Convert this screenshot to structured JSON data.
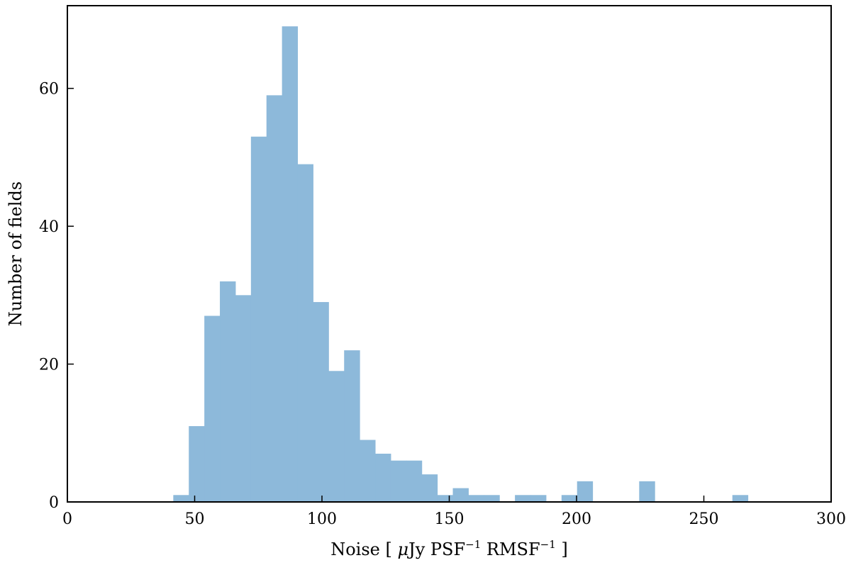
{
  "chart_data": {
    "type": "bar",
    "subtype": "histogram",
    "xlabel": "Noise [ μJy PSF⁻¹ RMSF⁻¹ ]",
    "xlabel_parts": {
      "pre": "Noise [ ",
      "mu": "μ",
      "jy_psf": "Jy PSF",
      "exp1": "−1",
      "rmsf": " RMSF",
      "exp2": "−1",
      "post": " ]"
    },
    "ylabel": "Number of fields",
    "xlim": [
      0,
      300
    ],
    "ylim": [
      0,
      72
    ],
    "xticks": [
      0,
      50,
      100,
      150,
      200,
      250,
      300
    ],
    "yticks": [
      0,
      20,
      40,
      60
    ],
    "grid": false,
    "legend": "none",
    "bar_color": "#8db9da",
    "bins": [
      {
        "x0": 41.6,
        "x1": 47.7,
        "count": 1
      },
      {
        "x0": 47.7,
        "x1": 53.8,
        "count": 11
      },
      {
        "x0": 53.8,
        "x1": 59.9,
        "count": 27
      },
      {
        "x0": 59.9,
        "x1": 66.0,
        "count": 32
      },
      {
        "x0": 66.0,
        "x1": 72.1,
        "count": 30
      },
      {
        "x0": 72.1,
        "x1": 78.2,
        "count": 53
      },
      {
        "x0": 78.2,
        "x1": 84.3,
        "count": 59
      },
      {
        "x0": 84.3,
        "x1": 90.4,
        "count": 69
      },
      {
        "x0": 90.4,
        "x1": 96.5,
        "count": 49
      },
      {
        "x0": 96.5,
        "x1": 102.6,
        "count": 29
      },
      {
        "x0": 102.6,
        "x1": 108.7,
        "count": 19
      },
      {
        "x0": 108.7,
        "x1": 114.8,
        "count": 22
      },
      {
        "x0": 114.8,
        "x1": 120.9,
        "count": 9
      },
      {
        "x0": 120.9,
        "x1": 127.0,
        "count": 7
      },
      {
        "x0": 127.0,
        "x1": 133.1,
        "count": 6
      },
      {
        "x0": 133.1,
        "x1": 139.2,
        "count": 6
      },
      {
        "x0": 139.2,
        "x1": 145.3,
        "count": 4
      },
      {
        "x0": 145.3,
        "x1": 151.4,
        "count": 1
      },
      {
        "x0": 151.4,
        "x1": 157.5,
        "count": 2
      },
      {
        "x0": 157.5,
        "x1": 163.6,
        "count": 1
      },
      {
        "x0": 163.6,
        "x1": 169.7,
        "count": 1
      },
      {
        "x0": 175.8,
        "x1": 181.9,
        "count": 1
      },
      {
        "x0": 181.9,
        "x1": 188.0,
        "count": 1
      },
      {
        "x0": 194.1,
        "x1": 200.2,
        "count": 1
      },
      {
        "x0": 200.2,
        "x1": 206.3,
        "count": 3
      },
      {
        "x0": 224.6,
        "x1": 230.7,
        "count": 3
      },
      {
        "x0": 261.2,
        "x1": 267.3,
        "count": 1
      }
    ]
  }
}
